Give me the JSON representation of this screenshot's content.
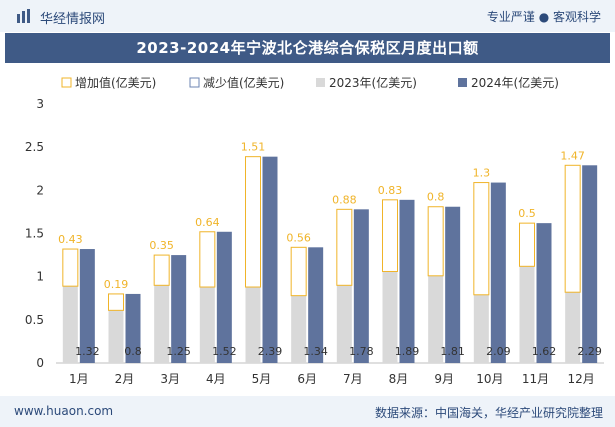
{
  "header": {
    "site_name": "华经情报网",
    "tagline": "专业严谨 ● 客观科学"
  },
  "footer": {
    "website": "www.huaon.com",
    "source": "数据来源：中国海关，华经产业研究院整理"
  },
  "colors": {
    "header_bg": "#eef3f9",
    "title_bg": "#3f5a86",
    "increase_outline": "#f0b429",
    "decrease_outline": "#6d86b3",
    "series_2023": "#d9d9d9",
    "series_2024": "#5f739d",
    "text": "#333333"
  },
  "chart_data": {
    "type": "bar",
    "title": "2023-2024年宁波北仑港综合保税区月度出口额",
    "categories": [
      "1月",
      "2月",
      "3月",
      "4月",
      "5月",
      "6月",
      "7月",
      "8月",
      "9月",
      "10月",
      "11月",
      "12月"
    ],
    "series": [
      {
        "name": "增加值(亿美元)",
        "values": [
          0.43,
          0.19,
          0.35,
          0.64,
          1.51,
          0.56,
          0.88,
          0.83,
          0.8,
          1.3,
          0.5,
          1.47
        ]
      },
      {
        "name": "减少值(亿美元)",
        "values": [
          0,
          0,
          0,
          0,
          0,
          0,
          0,
          0,
          0,
          0,
          0,
          0
        ]
      },
      {
        "name": "2023年(亿美元)",
        "values": [
          0.89,
          0.61,
          0.9,
          0.88,
          0.88,
          0.78,
          0.9,
          1.06,
          1.01,
          0.79,
          1.12,
          0.82
        ]
      },
      {
        "name": "2024年(亿美元)",
        "values": [
          1.32,
          0.8,
          1.25,
          1.52,
          2.39,
          1.34,
          1.78,
          1.89,
          1.81,
          2.09,
          1.62,
          2.29
        ]
      }
    ],
    "increase_labels": [
      "0.43",
      "0.19",
      "0.35",
      "0.64",
      "1.51",
      "0.56",
      "0.88",
      "0.83",
      "0.8",
      "1.3",
      "0.5",
      "1.47"
    ],
    "value_labels_2024": [
      "1.32",
      "0.8",
      "1.25",
      "1.52",
      "2.39",
      "1.34",
      "1.78",
      "1.89",
      "1.81",
      "2.09",
      "1.62",
      "2.29"
    ],
    "y_ticks": [
      "0",
      "0.5",
      "1",
      "1.5",
      "2",
      "2.5",
      "3"
    ],
    "ylim": [
      0,
      3
    ],
    "xlabel": "",
    "ylabel": "",
    "legend_position": "top"
  }
}
